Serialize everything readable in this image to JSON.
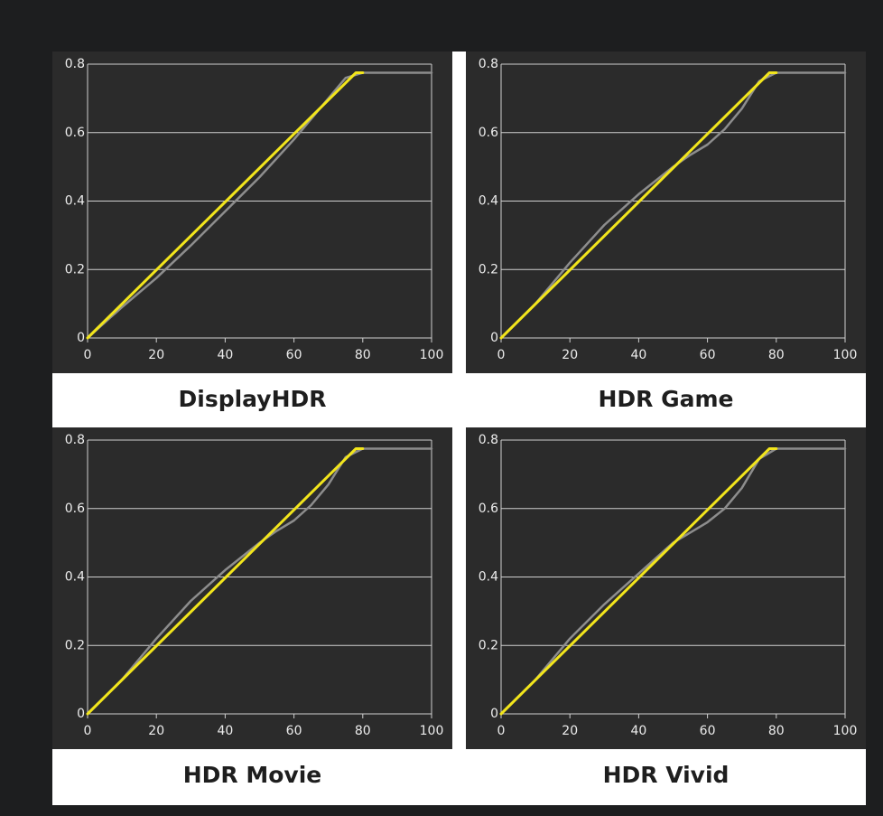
{
  "colors": {
    "page_background": "#1d1e1f",
    "plot_background": "#2b2b2b",
    "gridline": "#cfcfcf",
    "target_curve": "#f2e51c",
    "measured_curve": "#8d8d8d",
    "caption_text": "#1e1e1e"
  },
  "chart_data": [
    {
      "type": "line",
      "title": "DisplayHDR",
      "xlabel": "",
      "ylabel": "",
      "xlim": [
        0,
        100
      ],
      "ylim": [
        0,
        0.8
      ],
      "xticks": [
        "0",
        "20",
        "40",
        "60",
        "80",
        "100"
      ],
      "yticks": [
        "0",
        "0.2",
        "0.4",
        "0.6",
        "0.8"
      ],
      "grid": "horizontal",
      "series": [
        {
          "role": "target",
          "color": "#f2e51c",
          "x": [
            0,
            78,
            80
          ],
          "y": [
            0,
            0.775,
            0.775
          ]
        },
        {
          "role": "measured",
          "color": "#8d8d8d",
          "x": [
            0,
            10,
            20,
            30,
            40,
            50,
            60,
            70,
            75,
            80,
            100
          ],
          "y": [
            0,
            0.09,
            0.175,
            0.27,
            0.37,
            0.47,
            0.58,
            0.7,
            0.76,
            0.775,
            0.775
          ]
        }
      ]
    },
    {
      "type": "line",
      "title": "HDR Game",
      "xlabel": "",
      "ylabel": "",
      "xlim": [
        0,
        100
      ],
      "ylim": [
        0,
        0.8
      ],
      "xticks": [
        "0",
        "20",
        "40",
        "60",
        "80",
        "100"
      ],
      "yticks": [
        "0",
        "0.2",
        "0.4",
        "0.6",
        "0.8"
      ],
      "grid": "horizontal",
      "series": [
        {
          "role": "target",
          "color": "#f2e51c",
          "x": [
            0,
            78,
            80
          ],
          "y": [
            0,
            0.775,
            0.775
          ]
        },
        {
          "role": "measured",
          "color": "#8d8d8d",
          "x": [
            0,
            10,
            20,
            30,
            40,
            50,
            55,
            60,
            65,
            70,
            75,
            80,
            100
          ],
          "y": [
            0,
            0.1,
            0.22,
            0.33,
            0.42,
            0.5,
            0.535,
            0.565,
            0.61,
            0.67,
            0.75,
            0.775,
            0.775
          ]
        }
      ]
    },
    {
      "type": "line",
      "title": "HDR Movie",
      "xlabel": "",
      "ylabel": "",
      "xlim": [
        0,
        100
      ],
      "ylim": [
        0,
        0.8
      ],
      "xticks": [
        "0",
        "20",
        "40",
        "60",
        "80",
        "100"
      ],
      "yticks": [
        "0",
        "0.2",
        "0.4",
        "0.6",
        "0.8"
      ],
      "grid": "horizontal",
      "series": [
        {
          "role": "target",
          "color": "#f2e51c",
          "x": [
            0,
            78,
            80
          ],
          "y": [
            0,
            0.775,
            0.775
          ]
        },
        {
          "role": "measured",
          "color": "#8d8d8d",
          "x": [
            0,
            10,
            20,
            30,
            40,
            50,
            55,
            60,
            65,
            70,
            75,
            80,
            100
          ],
          "y": [
            0,
            0.1,
            0.22,
            0.33,
            0.42,
            0.5,
            0.535,
            0.565,
            0.61,
            0.67,
            0.75,
            0.775,
            0.775
          ]
        }
      ]
    },
    {
      "type": "line",
      "title": "HDR Vivid",
      "xlabel": "",
      "ylabel": "",
      "xlim": [
        0,
        100
      ],
      "ylim": [
        0,
        0.8
      ],
      "xticks": [
        "0",
        "20",
        "40",
        "60",
        "80",
        "100"
      ],
      "yticks": [
        "0",
        "0.2",
        "0.4",
        "0.6",
        "0.8"
      ],
      "grid": "horizontal",
      "series": [
        {
          "role": "target",
          "color": "#f2e51c",
          "x": [
            0,
            78,
            80
          ],
          "y": [
            0,
            0.775,
            0.775
          ]
        },
        {
          "role": "measured",
          "color": "#8d8d8d",
          "x": [
            0,
            10,
            20,
            30,
            40,
            50,
            55,
            60,
            65,
            70,
            75,
            80,
            100
          ],
          "y": [
            0,
            0.1,
            0.22,
            0.32,
            0.41,
            0.5,
            0.53,
            0.56,
            0.6,
            0.66,
            0.745,
            0.775,
            0.775
          ]
        }
      ]
    }
  ]
}
